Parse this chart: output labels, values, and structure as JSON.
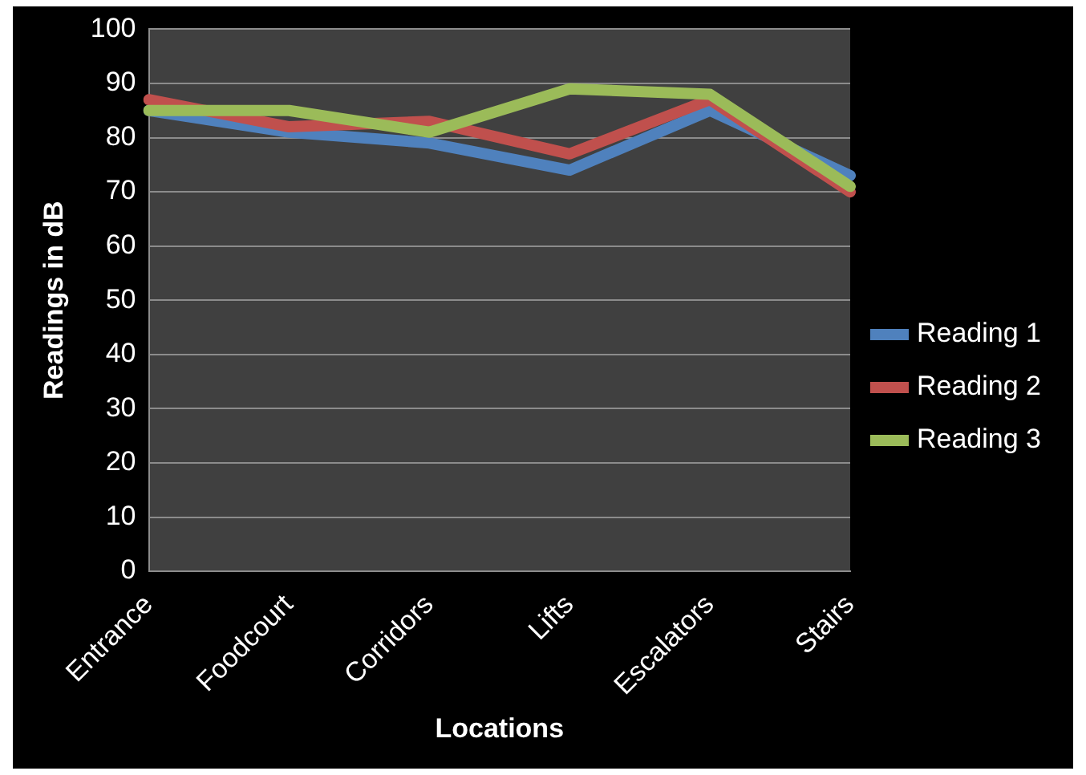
{
  "chart_data": {
    "type": "line",
    "xlabel": "Locations",
    "ylabel": "Readings in dB",
    "categories": [
      "Entrance",
      "Foodcourt",
      "Corridors",
      "Lifts",
      "Escalators",
      "Stairs"
    ],
    "series": [
      {
        "name": "Reading 1",
        "color": "#4f81bd",
        "values": [
          85,
          81,
          79,
          74,
          85,
          73
        ]
      },
      {
        "name": "Reading 2",
        "color": "#c0504d",
        "values": [
          87,
          82,
          83,
          77,
          87,
          70
        ]
      },
      {
        "name": "Reading 3",
        "color": "#9bbb59",
        "values": [
          85,
          85,
          81,
          89,
          88,
          71
        ]
      }
    ],
    "ylim": [
      0,
      100
    ],
    "yticks": [
      0,
      10,
      20,
      30,
      40,
      50,
      60,
      70,
      80,
      90,
      100
    ],
    "grid": "y",
    "legend": "right",
    "marker": "none",
    "line_style": "solid"
  }
}
